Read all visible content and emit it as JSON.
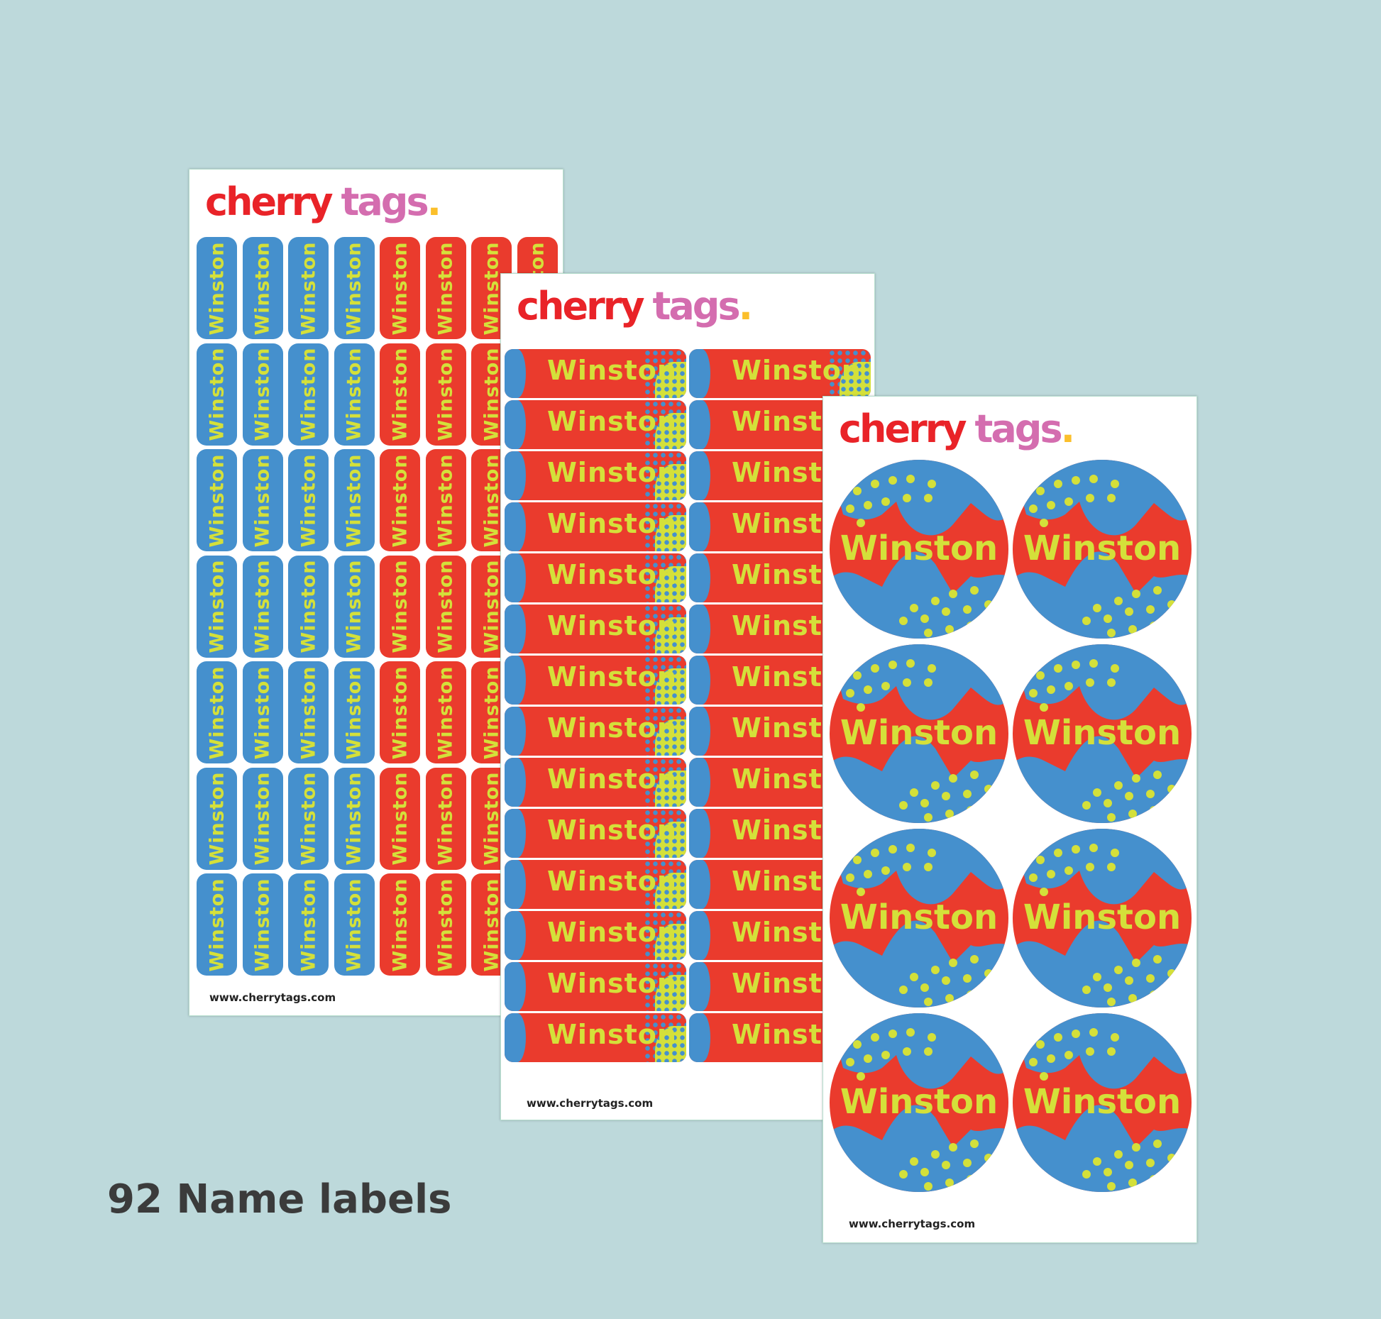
{
  "brand": {
    "word1": "cherry",
    "word2": "tags",
    "dot": ".",
    "color1": "#e92328",
    "color2": "#d46daf",
    "dot_color": "#fbbf2b"
  },
  "label_name": "Winston",
  "url": "www.cherrytags.com",
  "heading": "92 Name labels",
  "colors": {
    "background": "#bdd9db",
    "red": "#ea3b2d",
    "blue": "#4590cd",
    "lime": "#d4e03a"
  }
}
